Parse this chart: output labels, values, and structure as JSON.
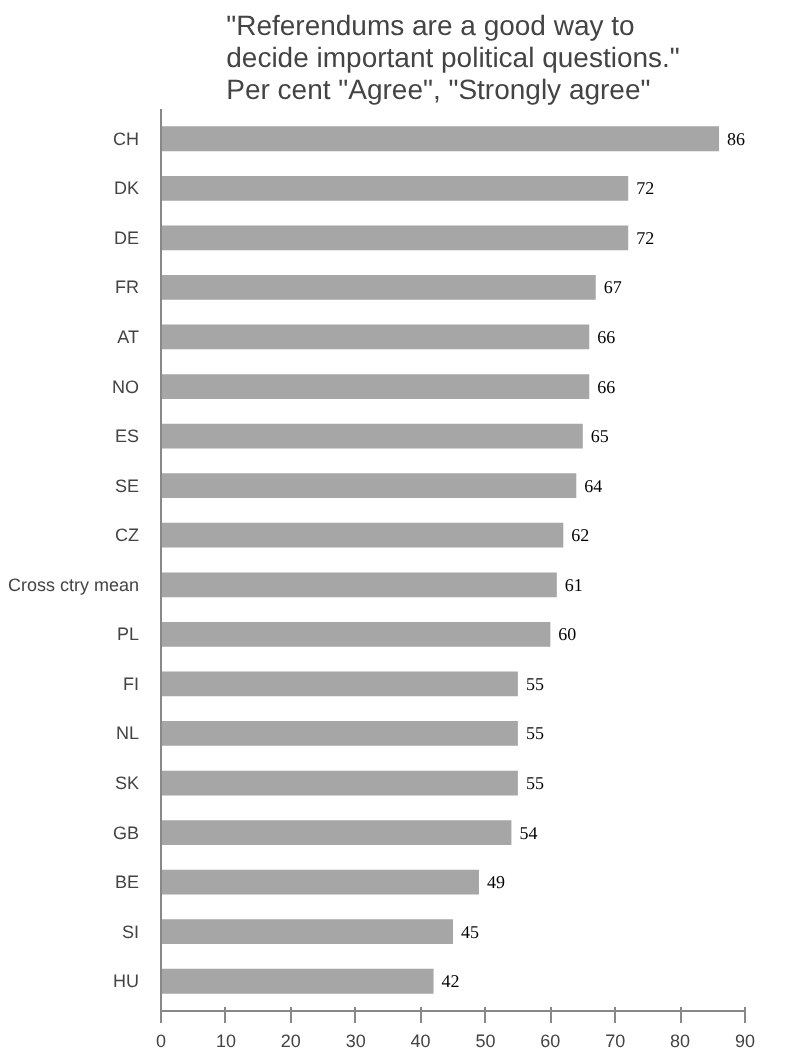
{
  "chart_data": {
    "type": "bar",
    "orientation": "horizontal",
    "title": "\"Referendums are a good way to\ndecide important political questions.\"\nPer cent \"Agree\", \"Strongly agree\"",
    "categories": [
      "CH",
      "DK",
      "DE",
      "FR",
      "AT",
      "NO",
      "ES",
      "SE",
      "CZ",
      "Cross ctry mean",
      "PL",
      "FI",
      "NL",
      "SK",
      "GB",
      "BE",
      "SI",
      "HU"
    ],
    "values": [
      86,
      72,
      72,
      67,
      66,
      66,
      65,
      64,
      62,
      61,
      60,
      55,
      55,
      55,
      54,
      49,
      45,
      42
    ],
    "color": "#a6a6a6",
    "xlim": [
      0,
      90
    ],
    "xticks": [
      0,
      10,
      20,
      30,
      40,
      50,
      60,
      70,
      80,
      90
    ],
    "grid": false,
    "data_labels": true
  }
}
